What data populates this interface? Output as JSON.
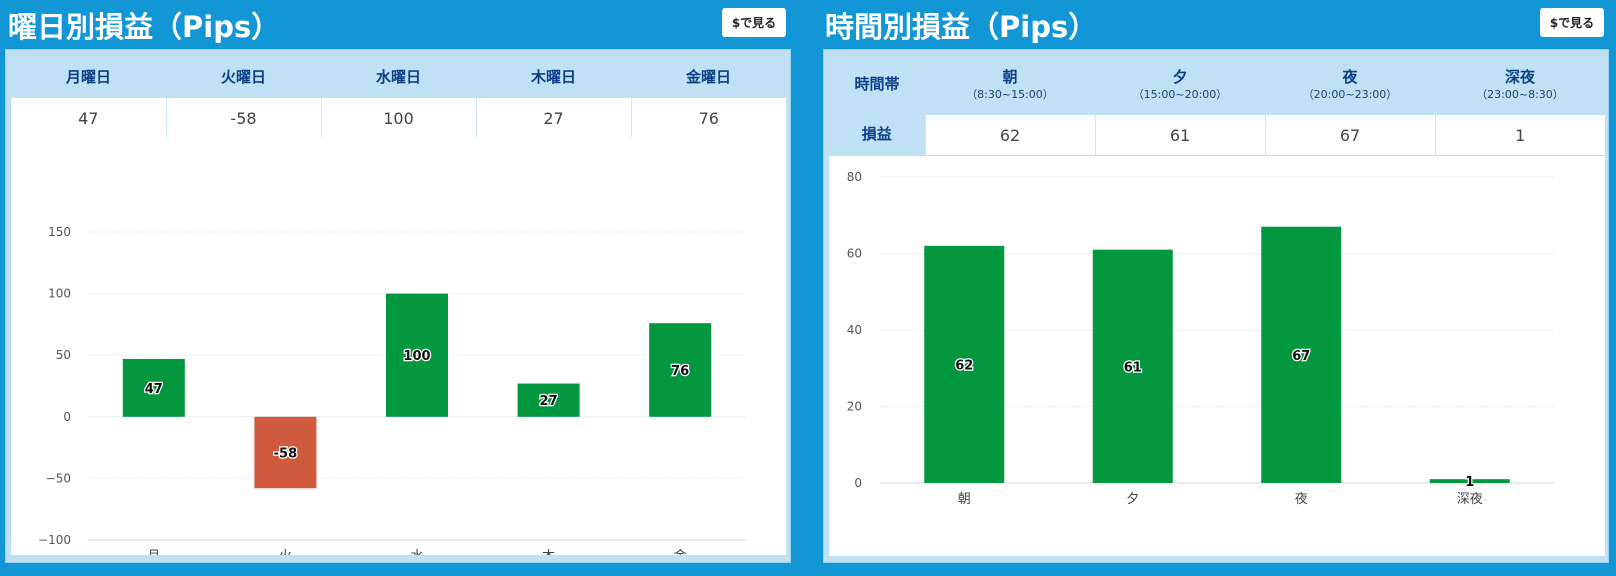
{
  "left_panel": {
    "title": "曜日別損益（Pips）",
    "usd_button": "$で見る",
    "table": {
      "headers": [
        "月曜日",
        "火曜日",
        "水曜日",
        "木曜日",
        "金曜日"
      ],
      "values": [
        "47",
        "-58",
        "100",
        "27",
        "76"
      ]
    }
  },
  "right_panel": {
    "title": "時間別損益（Pips）",
    "usd_button": "$で見る",
    "table": {
      "corner_label": "時間帯",
      "row_label": "損益",
      "columns": [
        {
          "name": "朝",
          "range": "（8:30~15:00）"
        },
        {
          "name": "夕",
          "range": "（15:00~20:00）"
        },
        {
          "name": "夜",
          "range": "（20:00~23:00）"
        },
        {
          "name": "深夜",
          "range": "（23:00~8:30）"
        }
      ],
      "values": [
        "62",
        "61",
        "67",
        "1"
      ]
    }
  },
  "colors": {
    "background": "#1296d6",
    "positive_bar": "#03983f",
    "negative_bar": "#cf5a3e",
    "header_bg": "#bfe1f3",
    "header_text": "#0c3f86"
  },
  "chart_data": [
    {
      "type": "bar",
      "categories": [
        "月",
        "火",
        "水",
        "木",
        "金"
      ],
      "values": [
        47,
        -58,
        100,
        27,
        76
      ],
      "data_labels": [
        "47",
        "-58",
        "100",
        "27",
        "76"
      ],
      "ylim": [
        -100,
        150
      ],
      "yticks": [
        -100,
        -50,
        0,
        50,
        100,
        150
      ],
      "ytick_labels": [
        "−100",
        "−50",
        "0",
        "50",
        "100",
        "150"
      ],
      "grid": true,
      "legend": "none"
    },
    {
      "type": "bar",
      "categories": [
        "朝",
        "夕",
        "夜",
        "深夜"
      ],
      "values": [
        62,
        61,
        67,
        1
      ],
      "data_labels": [
        "62",
        "61",
        "67",
        "1"
      ],
      "ylim": [
        0,
        80
      ],
      "yticks": [
        0,
        20,
        40,
        60,
        80
      ],
      "ytick_labels": [
        "0",
        "20",
        "40",
        "60",
        "80"
      ],
      "grid": true,
      "legend": "none"
    }
  ]
}
